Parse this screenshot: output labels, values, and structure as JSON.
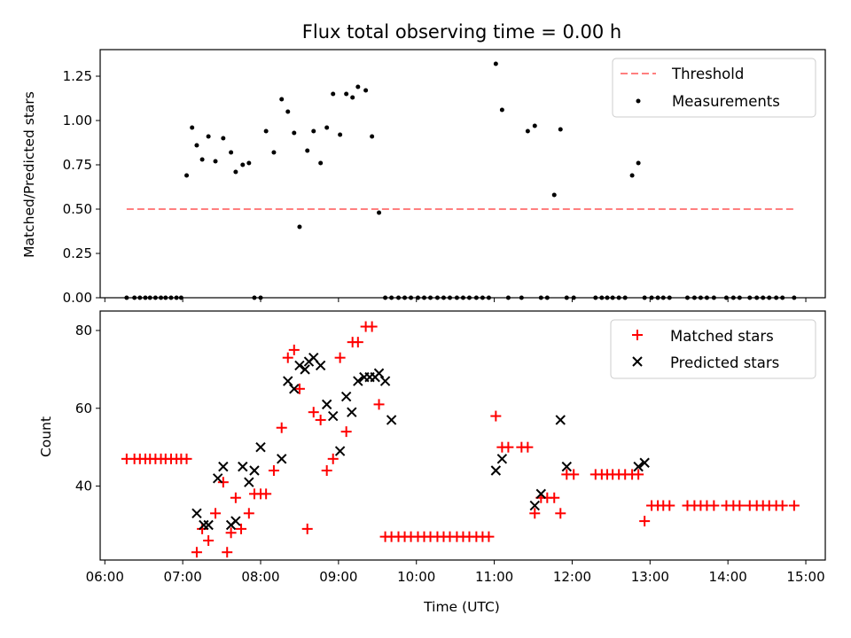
{
  "chart_data": [
    {
      "type": "scatter",
      "title": "Flux total observing time = 0.00 h",
      "xlabel": "",
      "ylabel": "Matched/Predicted stars",
      "xlim": [
        5.94,
        15.25
      ],
      "ylim": [
        0,
        1.4
      ],
      "yticks": [
        0,
        0.25,
        0.5,
        0.75,
        1.0,
        1.25
      ],
      "ytick_labels": [
        "0.00",
        "0.25",
        "0.50",
        "0.75",
        "1.00",
        "1.25"
      ],
      "legend_position": "top-right",
      "legend": [
        "Threshold",
        "Measurements"
      ],
      "threshold": {
        "name": "Threshold",
        "y": 0.5,
        "x_start": 6.28,
        "x_end": 14.87,
        "color": "#ff7f7f",
        "style": "dashed"
      },
      "series": [
        {
          "name": "Measurements",
          "color": "#000000",
          "marker": "dot",
          "x": [
            6.28,
            6.38,
            6.45,
            6.52,
            6.58,
            6.65,
            6.72,
            6.78,
            6.85,
            6.92,
            6.98,
            7.05,
            7.12,
            7.18,
            7.25,
            7.33,
            7.42,
            7.52,
            7.62,
            7.68,
            7.77,
            7.85,
            7.92,
            8.0,
            8.07,
            8.17,
            8.27,
            8.35,
            8.43,
            8.5,
            8.6,
            8.68,
            8.77,
            8.85,
            8.93,
            9.02,
            9.1,
            9.18,
            9.25,
            9.35,
            9.43,
            9.52,
            9.6,
            9.68,
            9.77,
            9.85,
            9.93,
            10.02,
            10.1,
            10.18,
            10.27,
            10.35,
            10.43,
            10.52,
            10.6,
            10.68,
            10.77,
            10.85,
            10.93,
            11.02,
            11.1,
            11.18,
            11.35,
            11.43,
            11.52,
            11.6,
            11.68,
            11.77,
            11.85,
            11.93,
            12.02,
            12.3,
            12.38,
            12.45,
            12.52,
            12.6,
            12.68,
            12.77,
            12.85,
            12.93,
            13.02,
            13.1,
            13.17,
            13.25,
            13.48,
            13.57,
            13.65,
            13.73,
            13.82,
            13.98,
            14.07,
            14.15,
            14.28,
            14.37,
            14.45,
            14.53,
            14.62,
            14.7,
            14.85
          ],
          "y": [
            0,
            0,
            0,
            0,
            0,
            0,
            0,
            0,
            0,
            0,
            0,
            0.69,
            0.96,
            0.86,
            0.78,
            0.91,
            0.77,
            0.9,
            0.82,
            0.71,
            0.75,
            0.76,
            0,
            0,
            0.94,
            0.82,
            1.12,
            1.05,
            0.93,
            0.4,
            0.83,
            0.94,
            0.76,
            0.96,
            1.15,
            0.92,
            1.15,
            1.13,
            1.19,
            1.17,
            0.91,
            0.48,
            0,
            0,
            0,
            0,
            0,
            0,
            0,
            0,
            0,
            0,
            0,
            0,
            0,
            0,
            0,
            0,
            0,
            1.32,
            1.06,
            0,
            0,
            0.94,
            0.97,
            0,
            0,
            0.58,
            0.95,
            0,
            0,
            0,
            0,
            0,
            0,
            0,
            0,
            0.69,
            0.76,
            0,
            0,
            0,
            0,
            0,
            0,
            0,
            0,
            0,
            0,
            0,
            0,
            0,
            0,
            0,
            0,
            0,
            0,
            0,
            0
          ]
        }
      ]
    },
    {
      "type": "scatter",
      "title": "",
      "xlabel": "Time (UTC)",
      "ylabel": "Count",
      "xlim": [
        5.94,
        15.25
      ],
      "ylim": [
        21,
        85
      ],
      "xticks": [
        6,
        7,
        8,
        9,
        10,
        11,
        12,
        13,
        14,
        15
      ],
      "xtick_labels": [
        "06:00",
        "07:00",
        "08:00",
        "09:00",
        "10:00",
        "11:00",
        "12:00",
        "13:00",
        "14:00",
        "15:00"
      ],
      "yticks": [
        40,
        60,
        80
      ],
      "ytick_labels": [
        "40",
        "60",
        "80"
      ],
      "legend_position": "top-right",
      "legend": [
        "Matched stars",
        "Predicted stars"
      ],
      "series": [
        {
          "name": "Matched stars",
          "color": "#ff0000",
          "marker": "plus",
          "x": [
            6.28,
            6.38,
            6.45,
            6.52,
            6.58,
            6.65,
            6.72,
            6.78,
            6.85,
            6.92,
            6.98,
            7.05,
            7.18,
            7.25,
            7.33,
            7.42,
            7.52,
            7.57,
            7.62,
            7.68,
            7.75,
            7.85,
            7.92,
            8.0,
            8.07,
            8.17,
            8.27,
            8.35,
            8.43,
            8.5,
            8.6,
            8.68,
            8.77,
            8.85,
            8.93,
            9.02,
            9.1,
            9.18,
            9.25,
            9.35,
            9.43,
            9.52,
            9.6,
            9.68,
            9.77,
            9.85,
            9.93,
            10.02,
            10.1,
            10.18,
            10.27,
            10.35,
            10.43,
            10.52,
            10.6,
            10.68,
            10.77,
            10.85,
            10.93,
            11.02,
            11.1,
            11.18,
            11.35,
            11.43,
            11.52,
            11.6,
            11.68,
            11.77,
            11.85,
            11.93,
            12.02,
            12.3,
            12.38,
            12.45,
            12.52,
            12.6,
            12.68,
            12.77,
            12.85,
            12.93,
            13.02,
            13.1,
            13.17,
            13.25,
            13.48,
            13.57,
            13.65,
            13.73,
            13.82,
            13.98,
            14.07,
            14.15,
            14.28,
            14.37,
            14.45,
            14.53,
            14.62,
            14.7,
            14.85
          ],
          "y": [
            47,
            47,
            47,
            47,
            47,
            47,
            47,
            47,
            47,
            47,
            47,
            47,
            23,
            29,
            26,
            33,
            41,
            23,
            28,
            37,
            29,
            33,
            38,
            38,
            38,
            44,
            55,
            73,
            75,
            65,
            29,
            59,
            57,
            44,
            47,
            73,
            54,
            77,
            77,
            81,
            81,
            61,
            27,
            27,
            27,
            27,
            27,
            27,
            27,
            27,
            27,
            27,
            27,
            27,
            27,
            27,
            27,
            27,
            27,
            58,
            50,
            50,
            50,
            50,
            33,
            37,
            37,
            37,
            33,
            43,
            43,
            43,
            43,
            43,
            43,
            43,
            43,
            43,
            43,
            31,
            35,
            35,
            35,
            35,
            35,
            35,
            35,
            35,
            35,
            35,
            35,
            35,
            35,
            35,
            35,
            35,
            35,
            35,
            35
          ]
        },
        {
          "name": "Predicted stars",
          "color": "#000000",
          "marker": "x",
          "x": [
            7.18,
            7.27,
            7.33,
            7.45,
            7.52,
            7.62,
            7.68,
            7.77,
            7.85,
            7.92,
            8.0,
            8.27,
            8.35,
            8.43,
            8.5,
            8.57,
            8.62,
            8.68,
            8.77,
            8.85,
            8.93,
            9.02,
            9.1,
            9.17,
            9.25,
            9.33,
            9.4,
            9.47,
            9.52,
            9.6,
            9.68,
            11.02,
            11.1,
            11.52,
            11.6,
            11.85,
            11.93,
            12.85,
            12.93
          ],
          "y": [
            33,
            30,
            30,
            42,
            45,
            30,
            31,
            45,
            41,
            44,
            50,
            47,
            67,
            65,
            71,
            70,
            72,
            73,
            71,
            61,
            58,
            49,
            63,
            59,
            67,
            68,
            68,
            68,
            69,
            67,
            57,
            44,
            47,
            35,
            38,
            57,
            45,
            45,
            46
          ]
        }
      ]
    }
  ]
}
